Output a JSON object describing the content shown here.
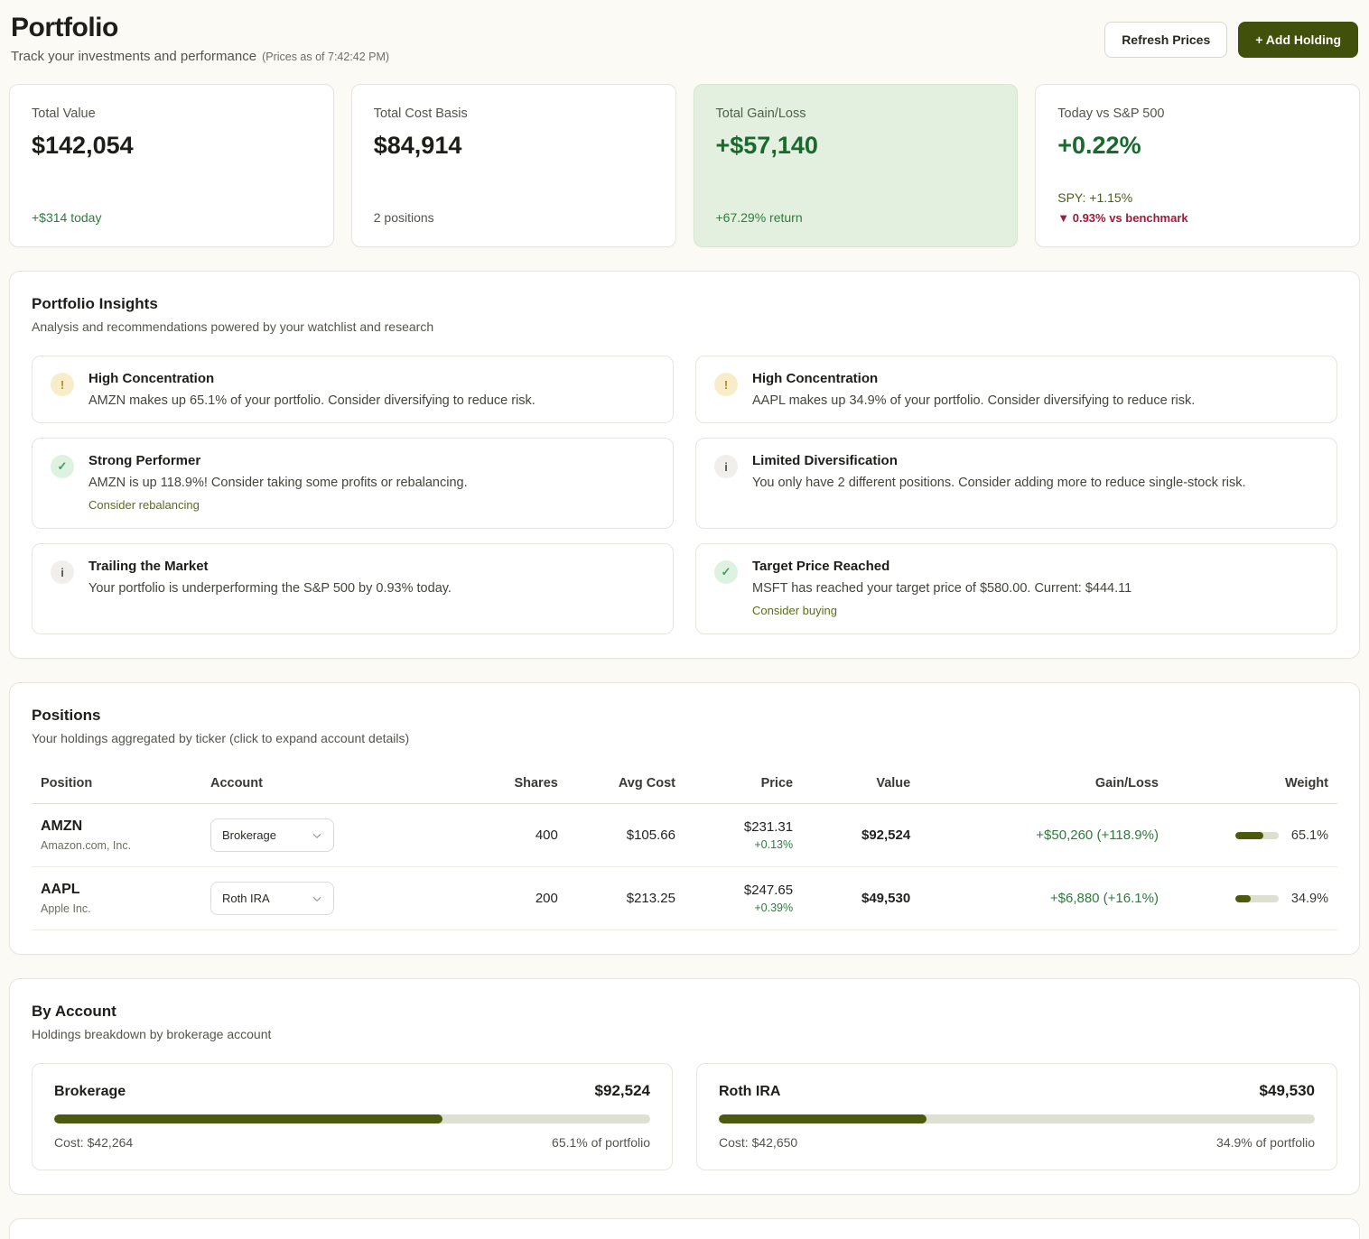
{
  "header": {
    "title": "Portfolio",
    "subtitle": "Track your investments and performance",
    "prices_note": "(Prices as of 7:42:42 PM)",
    "refresh_label": "Refresh Prices",
    "add_label": "+ Add Holding"
  },
  "stats": {
    "cards": [
      {
        "label": "Total Value",
        "value": "$142,054",
        "sub": "+$314 today"
      },
      {
        "label": "Total Cost Basis",
        "value": "$84,914",
        "sub": "2 positions"
      },
      {
        "label": "Total Gain/Loss",
        "value": "+$57,140",
        "sub": "+67.29% return"
      },
      {
        "label": "Today vs S&P 500",
        "value": "+0.22%",
        "sub": "SPY: +1.15%",
        "sub2": "▼ 0.93% vs benchmark"
      }
    ]
  },
  "insights": {
    "title": "Portfolio Insights",
    "subtitle": "Analysis and recommendations powered by your watchlist and research",
    "cards": [
      {
        "type": "warning",
        "glyph": "!",
        "title": "High Concentration",
        "desc": "AMZN makes up 65.1% of your portfolio. Consider diversifying to reduce risk."
      },
      {
        "type": "warning",
        "glyph": "!",
        "title": "High Concentration",
        "desc": "AAPL makes up 34.9% of your portfolio. Consider diversifying to reduce risk."
      },
      {
        "type": "success",
        "glyph": "✓",
        "title": "Strong Performer",
        "desc": "AMZN is up 118.9%! Consider taking some profits or rebalancing.",
        "action": "Consider rebalancing"
      },
      {
        "type": "info",
        "glyph": "i",
        "title": "Limited Diversification",
        "desc": "You only have 2 different positions. Consider adding more to reduce single-stock risk."
      },
      {
        "type": "info",
        "glyph": "i",
        "title": "Trailing the Market",
        "desc": "Your portfolio is underperforming the S&P 500 by 0.93% today."
      },
      {
        "type": "success",
        "glyph": "✓",
        "title": "Target Price Reached",
        "desc": "MSFT has reached your target price of $580.00. Current: $444.11",
        "action": "Consider buying"
      }
    ]
  },
  "positions": {
    "title": "Positions",
    "subtitle": "Your holdings aggregated by ticker (click to expand account details)",
    "columns": [
      "Position",
      "Account",
      "Shares",
      "Avg Cost",
      "Price",
      "Value",
      "Gain/Loss",
      "Weight"
    ],
    "rows": [
      {
        "ticker": "AMZN",
        "company": "Amazon.com, Inc.",
        "account": "Brokerage",
        "shares": "400",
        "avg_cost": "$105.66",
        "price": "$231.31",
        "price_change": "+0.13%",
        "value": "$92,524",
        "gain_loss": "+$50,260 (+118.9%)",
        "weight_label": "65.1%",
        "weight_pct": 65.1
      },
      {
        "ticker": "AAPL",
        "company": "Apple Inc.",
        "account": "Roth IRA",
        "shares": "200",
        "avg_cost": "$213.25",
        "price": "$247.65",
        "price_change": "+0.39%",
        "value": "$49,530",
        "gain_loss": "+$6,880 (+16.1%)",
        "weight_label": "34.9%",
        "weight_pct": 34.9
      }
    ]
  },
  "by_account": {
    "title": "By Account",
    "subtitle": "Holdings breakdown by brokerage account",
    "accounts": [
      {
        "name": "Brokerage",
        "value": "$92,524",
        "cost": "Cost: $42,264",
        "pct_label": "65.1% of portfolio",
        "pct": 65.1
      },
      {
        "name": "Roth IRA",
        "value": "$49,530",
        "cost": "Cost: $42,650",
        "pct_label": "34.9% of portfolio",
        "pct": 34.9
      }
    ]
  },
  "colors": {
    "accent_olive": "#41500a",
    "success_green": "#2c7c3c",
    "gain_value_green": "#186a2e",
    "benchmark_red": "#9f1c37",
    "gain_card_bg": "#e4f0df",
    "warning_icon": "#b3882a",
    "bar_fill": "#4b5a0e",
    "bar_track": "#dde0cf"
  }
}
